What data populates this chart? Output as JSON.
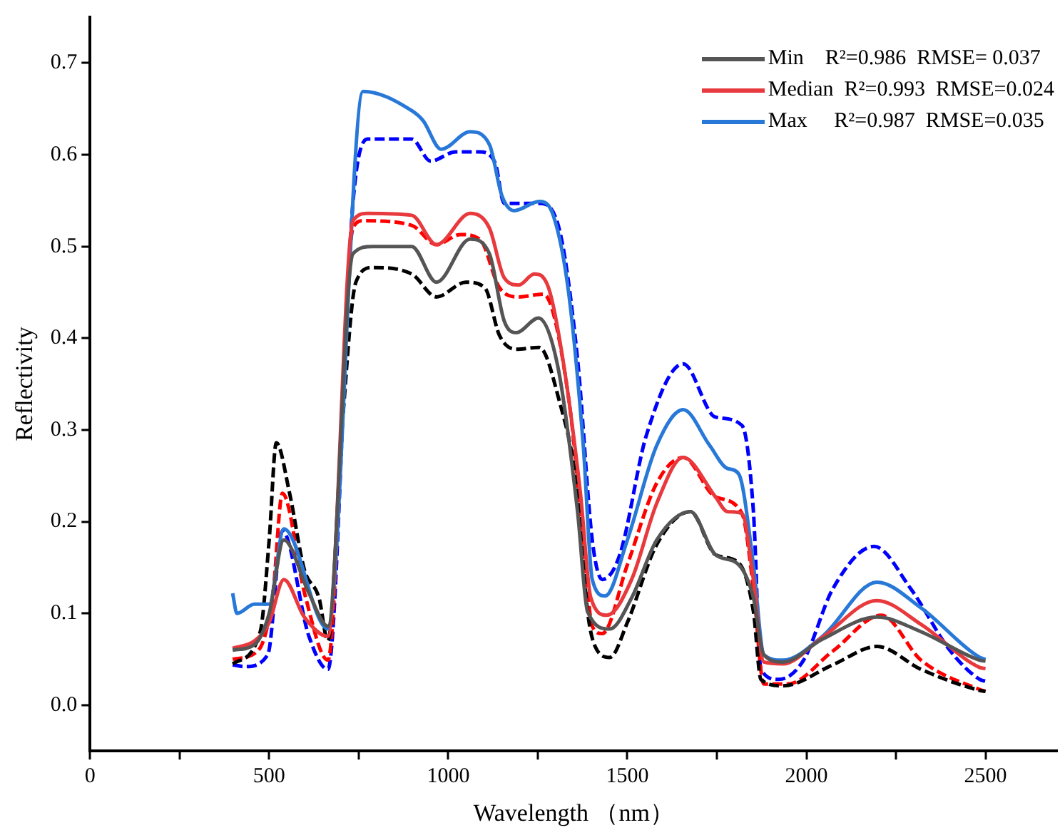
{
  "chart_data": {
    "type": "line",
    "xlabel": "Wavelength （nm）",
    "ylabel": "Reflectivity",
    "xlim": [
      0,
      2700
    ],
    "xticks": [
      0,
      {
        "value": 250,
        "label": null
      },
      500,
      {
        "value": 750,
        "label": null
      },
      1000,
      {
        "value": 1250,
        "label": null
      },
      1500,
      {
        "value": 1750,
        "label": null
      },
      2000,
      {
        "value": 2250,
        "label": null
      },
      2500
    ],
    "ylim": [
      -0.05,
      0.75
    ],
    "yticks": [
      {
        "value": 0,
        "label": "0.0"
      },
      0.1,
      0.2,
      0.3,
      0.4,
      0.5,
      0.6,
      0.7
    ],
    "grid": false,
    "legend": "top right",
    "marker": "none",
    "series": [
      {
        "name": "Min    R²=0.986  RMSE= 0.037",
        "color": "#555555",
        "line_style": "solid",
        "x": [
          398,
          459,
          500,
          541,
          611,
          664,
          734,
          789,
          898,
          967,
          1061,
          1115,
          1156,
          1190,
          1252,
          1307,
          1361,
          1389,
          1451,
          1512,
          1582,
          1676,
          1746,
          1811,
          1852,
          1881,
          1934,
          2045,
          2197,
          2320,
          2484,
          2500
        ],
        "values": [
          0.06,
          0.066,
          0.1,
          0.18,
          0.122,
          0.086,
          0.492,
          0.5,
          0.5,
          0.461,
          0.508,
          0.492,
          0.419,
          0.406,
          0.422,
          0.367,
          0.211,
          0.102,
          0.083,
          0.117,
          0.18,
          0.211,
          0.164,
          0.153,
          0.117,
          0.055,
          0.047,
          0.072,
          0.096,
          0.08,
          0.049,
          0.048
        ]
      },
      {
        "name": "Median  R²=0.993  RMSE=0.024",
        "color": "#e8393d",
        "line_style": "solid",
        "x": [
          398,
          459,
          500,
          541,
          598,
          664,
          734,
          775,
          898,
          967,
          1061,
          1115,
          1156,
          1197,
          1240,
          1280,
          1320,
          1369,
          1398,
          1443,
          1512,
          1582,
          1656,
          1746,
          1779,
          1820,
          1852,
          1881,
          1934,
          2045,
          2197,
          2320,
          2484,
          2500
        ],
        "values": [
          0.062,
          0.07,
          0.09,
          0.137,
          0.096,
          0.075,
          0.528,
          0.536,
          0.534,
          0.502,
          0.536,
          0.52,
          0.466,
          0.458,
          0.47,
          0.455,
          0.377,
          0.231,
          0.117,
          0.098,
          0.137,
          0.22,
          0.27,
          0.227,
          0.211,
          0.209,
          0.137,
          0.047,
          0.045,
          0.074,
          0.114,
          0.088,
          0.041,
          0.04
        ]
      },
      {
        "name": "Max     R²=0.987  RMSE=0.035",
        "color": "#2878d8",
        "line_style": "solid",
        "x": [
          398,
          410,
          459,
          500,
          541,
          664,
          762,
          898,
          930,
          980,
          1061,
          1115,
          1150,
          1184,
          1254,
          1294,
          1336,
          1377,
          1402,
          1438,
          1500,
          1582,
          1656,
          1730,
          1779,
          1811,
          1852,
          1881,
          1934,
          2045,
          2197,
          2320,
          2484,
          2500
        ],
        "values": [
          0.122,
          0.1,
          0.11,
          0.11,
          0.192,
          0.083,
          0.669,
          0.648,
          0.637,
          0.606,
          0.625,
          0.611,
          0.555,
          0.539,
          0.549,
          0.533,
          0.45,
          0.283,
          0.137,
          0.119,
          0.18,
          0.283,
          0.322,
          0.283,
          0.258,
          0.252,
          0.153,
          0.055,
          0.049,
          0.075,
          0.134,
          0.106,
          0.052,
          0.05
        ]
      },
      {
        "color": "#000000",
        "line_style": "dashed",
        "x": [
          398,
          475,
          500,
          520,
          557,
          598,
          639,
          664,
          705,
          742,
          789,
          898,
          967,
          1049,
          1102,
          1143,
          1190,
          1254,
          1307,
          1361,
          1389,
          1410,
          1451,
          1500,
          1582,
          1676,
          1746,
          1811,
          1852,
          1873,
          1934,
          2074,
          2197,
          2320,
          2484,
          2500
        ],
        "values": [
          0.045,
          0.08,
          0.18,
          0.286,
          0.231,
          0.148,
          0.117,
          0.07,
          0.31,
          0.461,
          0.477,
          0.47,
          0.445,
          0.461,
          0.455,
          0.403,
          0.388,
          0.39,
          0.336,
          0.231,
          0.102,
          0.064,
          0.052,
          0.09,
          0.175,
          0.211,
          0.164,
          0.155,
          0.102,
          0.028,
          0.021,
          0.044,
          0.064,
          0.039,
          0.016,
          0.015
        ]
      },
      {
        "color": "#ff0000",
        "line_style": "dashed",
        "x": [
          398,
          470,
          510,
          537,
          600,
          664,
          734,
          762,
          898,
          967,
          1034,
          1088,
          1143,
          1197,
          1266,
          1336,
          1377,
          1402,
          1430,
          1500,
          1582,
          1656,
          1746,
          1820,
          1852,
          1881,
          1947,
          2074,
          2209,
          2320,
          2484,
          2500
        ],
        "values": [
          0.05,
          0.06,
          0.12,
          0.231,
          0.12,
          0.049,
          0.52,
          0.528,
          0.523,
          0.502,
          0.513,
          0.508,
          0.455,
          0.445,
          0.448,
          0.335,
          0.18,
          0.086,
          0.078,
          0.153,
          0.242,
          0.27,
          0.227,
          0.209,
          0.127,
          0.023,
          0.023,
          0.059,
          0.098,
          0.049,
          0.017,
          0.015
        ]
      },
      {
        "color": "#0000ff",
        "line_style": "dashed",
        "x": [
          398,
          432,
          496,
          537,
          611,
          664,
          734,
          775,
          898,
          951,
          1020,
          1088,
          1131,
          1156,
          1254,
          1307,
          1361,
          1402,
          1430,
          1479,
          1553,
          1656,
          1746,
          1820,
          1852,
          1873,
          1922,
          1992,
          2074,
          2189,
          2291,
          2402,
          2484,
          2500
        ],
        "values": [
          0.044,
          0.042,
          0.055,
          0.19,
          0.075,
          0.039,
          0.548,
          0.617,
          0.617,
          0.593,
          0.603,
          0.603,
          0.591,
          0.547,
          0.547,
          0.523,
          0.377,
          0.18,
          0.137,
          0.164,
          0.294,
          0.372,
          0.314,
          0.305,
          0.211,
          0.039,
          0.028,
          0.049,
          0.127,
          0.173,
          0.127,
          0.059,
          0.028,
          0.026
        ]
      }
    ]
  }
}
